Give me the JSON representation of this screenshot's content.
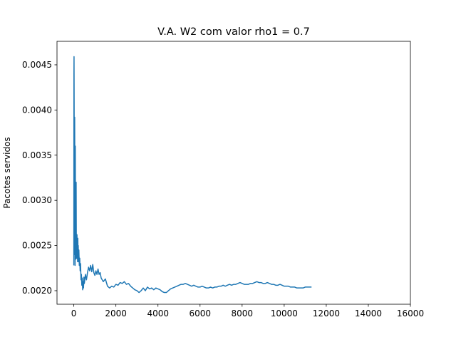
{
  "chart_data": {
    "type": "line",
    "title": "V.A. W2 com valor rho1 = 0.7",
    "xlabel": "",
    "ylabel": "Pacotes servidos",
    "xlim": [
      -800,
      16000
    ],
    "ylim": [
      0.00185,
      0.00476
    ],
    "x_ticks": [
      0,
      2000,
      4000,
      6000,
      8000,
      10000,
      12000,
      14000,
      16000
    ],
    "x_tick_labels": [
      "0",
      "2000",
      "4000",
      "6000",
      "8000",
      "10000",
      "12000",
      "14000",
      "16000"
    ],
    "y_ticks": [
      0.002,
      0.0025,
      0.003,
      0.0035,
      0.004,
      0.0045
    ],
    "y_tick_labels": [
      "0.0020",
      "0.0025",
      "0.0030",
      "0.0035",
      "0.0040",
      "0.0045"
    ],
    "grid": false,
    "legend": "none",
    "line_color": "#1f77b4",
    "series": [
      {
        "x": [
          0,
          5,
          10,
          15,
          20,
          30,
          40,
          50,
          60,
          70,
          80,
          90,
          100,
          110,
          120,
          130,
          140,
          150,
          160,
          170,
          180,
          190,
          200,
          210,
          220,
          240,
          260,
          280,
          300,
          320,
          340,
          360,
          380,
          400,
          420,
          440,
          460,
          480,
          500,
          550,
          600,
          650,
          700,
          750,
          800,
          850,
          900,
          950,
          1000,
          1050,
          1100,
          1150,
          1200,
          1250,
          1300,
          1400,
          1500,
          1600,
          1700,
          1800,
          1900,
          2000,
          2100,
          2200,
          2300,
          2400,
          2500,
          2600,
          2700,
          2800,
          2900,
          3000,
          3100,
          3200,
          3300,
          3400,
          3500,
          3600,
          3700,
          3800,
          3900,
          4000,
          4100,
          4200,
          4300,
          4400,
          4500,
          4600,
          4700,
          4800,
          4900,
          5000,
          5100,
          5200,
          5300,
          5400,
          5500,
          5600,
          5700,
          5800,
          5900,
          6000,
          6100,
          6200,
          6300,
          6400,
          6500,
          6600,
          6700,
          6800,
          6900,
          7000,
          7100,
          7200,
          7300,
          7400,
          7500,
          7600,
          7700,
          7800,
          7900,
          8000,
          8100,
          8200,
          8300,
          8400,
          8500,
          8600,
          8700,
          8800,
          8900,
          9000,
          9100,
          9200,
          9300,
          9400,
          9500,
          9600,
          9700,
          9800,
          9900,
          10000,
          10100,
          10200,
          10300,
          10400,
          10500,
          10600,
          10700,
          10800,
          10900,
          11000,
          11100,
          11200,
          11300
        ],
        "y": [
          0.00228,
          0.0044,
          0.00459,
          0.0041,
          0.00335,
          0.0024,
          0.00392,
          0.003,
          0.00228,
          0.0036,
          0.0025,
          0.00275,
          0.00235,
          0.0032,
          0.00245,
          0.00255,
          0.00236,
          0.00262,
          0.0024,
          0.00252,
          0.00232,
          0.00258,
          0.0024,
          0.0025,
          0.00232,
          0.00245,
          0.00228,
          0.00236,
          0.00222,
          0.0023,
          0.00212,
          0.00218,
          0.00206,
          0.00214,
          0.00201,
          0.0021,
          0.00203,
          0.00215,
          0.00208,
          0.00218,
          0.00212,
          0.0022,
          0.00226,
          0.00222,
          0.00228,
          0.00221,
          0.00229,
          0.0022,
          0.00217,
          0.00222,
          0.00218,
          0.00224,
          0.00218,
          0.0022,
          0.00214,
          0.0021,
          0.00213,
          0.00205,
          0.00203,
          0.00205,
          0.00204,
          0.00207,
          0.00206,
          0.00209,
          0.00208,
          0.0021,
          0.00207,
          0.00208,
          0.00205,
          0.00203,
          0.00201,
          0.002,
          0.00198,
          0.002,
          0.00203,
          0.002,
          0.00204,
          0.00202,
          0.00203,
          0.00201,
          0.00203,
          0.00202,
          0.00201,
          0.00199,
          0.00198,
          0.00198,
          0.002,
          0.00202,
          0.00203,
          0.00204,
          0.00205,
          0.00206,
          0.00207,
          0.00207,
          0.00208,
          0.00207,
          0.00206,
          0.00205,
          0.00206,
          0.00205,
          0.00204,
          0.00204,
          0.00205,
          0.00204,
          0.00203,
          0.00203,
          0.00204,
          0.00203,
          0.00204,
          0.00204,
          0.00205,
          0.00205,
          0.00206,
          0.00205,
          0.00206,
          0.00207,
          0.00206,
          0.00207,
          0.00207,
          0.00208,
          0.00209,
          0.00208,
          0.00207,
          0.00207,
          0.00207,
          0.00208,
          0.00208,
          0.00209,
          0.0021,
          0.00209,
          0.00209,
          0.00208,
          0.00208,
          0.00209,
          0.00208,
          0.00207,
          0.00207,
          0.00206,
          0.00206,
          0.00207,
          0.00206,
          0.00205,
          0.00205,
          0.00205,
          0.00204,
          0.00204,
          0.00204,
          0.00203,
          0.00203,
          0.00203,
          0.00203,
          0.00204,
          0.00204,
          0.00204,
          0.00204
        ]
      }
    ]
  }
}
